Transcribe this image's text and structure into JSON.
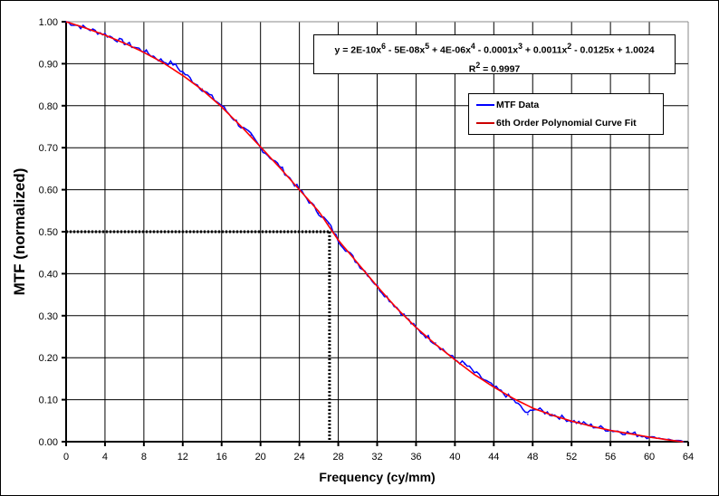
{
  "chart_data": {
    "type": "line",
    "xlabel": "Frequency (cy/mm)",
    "ylabel": "MTF (normalized)",
    "xlim": [
      0,
      64
    ],
    "ylim": [
      0,
      1
    ],
    "x_ticks": [
      "0",
      "4",
      "8",
      "12",
      "16",
      "20",
      "24",
      "28",
      "32",
      "36",
      "40",
      "44",
      "48",
      "52",
      "56",
      "60",
      "64"
    ],
    "y_ticks": [
      "0.00",
      "0.10",
      "0.20",
      "0.30",
      "0.40",
      "0.50",
      "0.60",
      "0.70",
      "0.80",
      "0.90",
      "1.00"
    ],
    "grid": true,
    "legend_position": "top-right",
    "series": [
      {
        "name": "MTF Data",
        "color": "#0000ff",
        "x": [
          0,
          2,
          4,
          6,
          8,
          10,
          11,
          12,
          14,
          16,
          18,
          19,
          20,
          22,
          24,
          26,
          27,
          28,
          30,
          31,
          32,
          34,
          36,
          38,
          40,
          41,
          42,
          44,
          46,
          47.5,
          48,
          50,
          52,
          54,
          56,
          58,
          60,
          62,
          63.5
        ],
        "y": [
          1.0,
          0.985,
          0.97,
          0.95,
          0.93,
          0.905,
          0.9,
          0.88,
          0.84,
          0.8,
          0.75,
          0.73,
          0.7,
          0.655,
          0.6,
          0.545,
          0.52,
          0.48,
          0.425,
          0.4,
          0.37,
          0.32,
          0.27,
          0.235,
          0.195,
          0.185,
          0.165,
          0.13,
          0.1,
          0.065,
          0.08,
          0.065,
          0.05,
          0.038,
          0.028,
          0.02,
          0.012,
          0.005,
          0.0
        ]
      },
      {
        "name": "6th Order Polynomial Curve Fit",
        "color": "#ff0000",
        "x": [
          0,
          2,
          4,
          6,
          8,
          10,
          12,
          14,
          16,
          18,
          20,
          22,
          24,
          26,
          28,
          30,
          32,
          34,
          36,
          38,
          40,
          42,
          44,
          46,
          48,
          50,
          52,
          54,
          56,
          58,
          60,
          62,
          63.5
        ],
        "y": [
          1.0,
          0.985,
          0.968,
          0.949,
          0.927,
          0.902,
          0.872,
          0.838,
          0.797,
          0.751,
          0.702,
          0.652,
          0.6,
          0.548,
          0.48,
          0.425,
          0.37,
          0.318,
          0.272,
          0.232,
          0.195,
          0.16,
          0.13,
          0.103,
          0.08,
          0.063,
          0.049,
          0.037,
          0.027,
          0.019,
          0.011,
          0.004,
          0.0
        ]
      }
    ],
    "annotations": {
      "equation": "y = 2E-10x6 - 5E-08x5 + 4E-06x4 - 0.0001x3 + 0.0011x2 - 0.0125x + 1.0024",
      "equation_parts": [
        "y = 2E-10x",
        "6",
        " - 5E-08x",
        "5",
        " + 4E-06x",
        "4",
        " - 0.0001x",
        "3",
        " + 0.0011x",
        "2",
        " - 0.0125x + 1.0024"
      ],
      "r2_prefix": "R",
      "r2_sup": "2",
      "r2_value": " = 0.9997",
      "mtf50_x": 27.1,
      "mtf50_y": 0.5
    }
  }
}
